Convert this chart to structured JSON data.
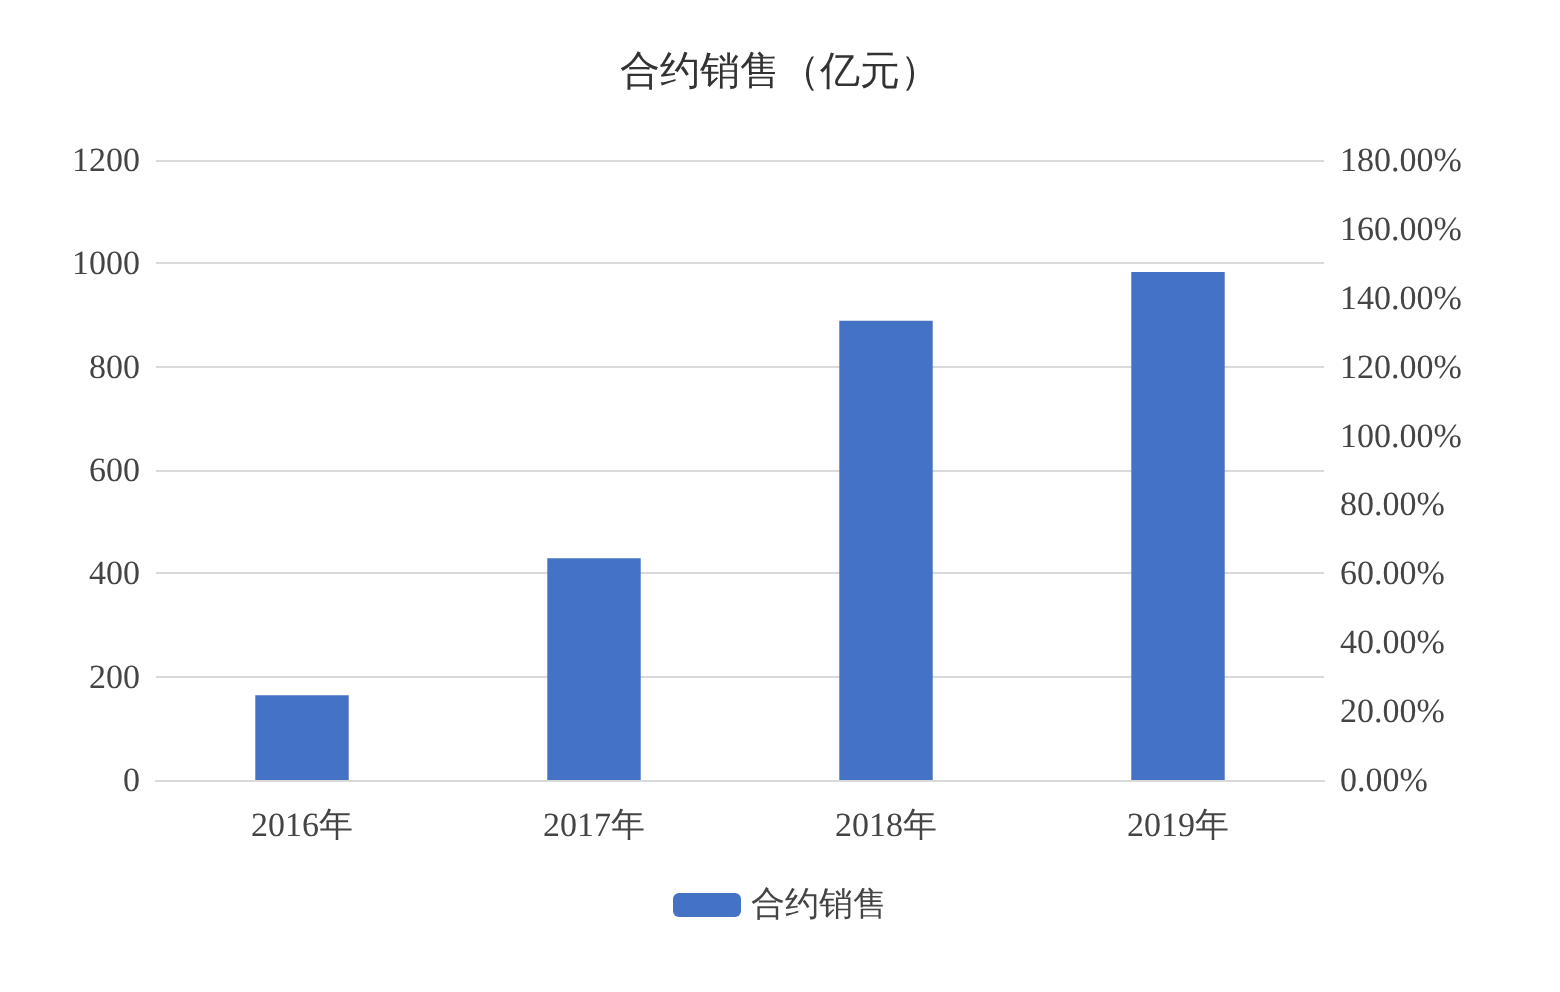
{
  "chart_data": {
    "type": "bar",
    "title": "合约销售（亿元）",
    "categories": [
      "2016年",
      "2017年",
      "2018年",
      "2019年"
    ],
    "series": [
      {
        "name": "合约销售",
        "color": "#4472c4",
        "values": [
          164,
          429,
          889,
          983
        ]
      }
    ],
    "ylim": [
      0,
      1200
    ],
    "yticks": [
      0,
      200,
      400,
      600,
      800,
      1000,
      1200
    ],
    "y2lim": [
      0,
      180
    ],
    "y2ticks": [
      {
        "value": 0,
        "label": "0.00%"
      },
      {
        "value": 20,
        "label": "20.00%"
      },
      {
        "value": 40,
        "label": "40.00%"
      },
      {
        "value": 60,
        "label": "60.00%"
      },
      {
        "value": 80,
        "label": "80.00%"
      },
      {
        "value": 100,
        "label": "100.00%"
      },
      {
        "value": 120,
        "label": "120.00%"
      },
      {
        "value": 140,
        "label": "140.00%"
      },
      {
        "value": 160,
        "label": "160.00%"
      },
      {
        "value": 180,
        "label": "180.00%"
      }
    ],
    "grid": "y",
    "legend": "bottom"
  }
}
